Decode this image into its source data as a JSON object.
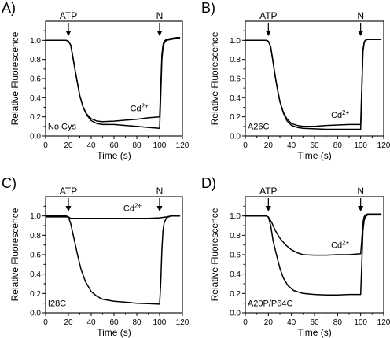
{
  "chart_data": [
    {
      "panel_label": "A)",
      "type": "line",
      "xlabel": "Time (s)",
      "ylabel": "Relative Fluorescence",
      "xlim": [
        0,
        120
      ],
      "ylim": [
        0,
        1.2
      ],
      "xticks": [
        "0",
        "20",
        "40",
        "60",
        "80",
        "100",
        "120"
      ],
      "yticks": [
        "0.0",
        "0.2",
        "0.4",
        "0.6",
        "0.8",
        "1.0"
      ],
      "annotations": [
        {
          "text": "ATP",
          "kind": "arrow",
          "x": 20
        },
        {
          "text": "N",
          "kind": "arrow",
          "x": 100
        },
        {
          "text": "Cd2+",
          "kind": "label",
          "x": 88,
          "y": 0.26
        },
        {
          "text": "No Cys",
          "kind": "label",
          "x": 2,
          "y": 0.07
        }
      ],
      "series": [
        {
          "x": [
            0,
            18,
            20,
            22,
            24,
            26,
            28,
            30,
            33,
            36,
            40,
            45,
            50,
            60,
            70,
            80,
            90,
            100,
            101,
            102,
            103,
            104,
            106,
            110,
            115,
            118
          ],
          "y": [
            1.0,
            1.0,
            0.99,
            0.95,
            0.82,
            0.68,
            0.55,
            0.42,
            0.3,
            0.22,
            0.16,
            0.13,
            0.12,
            0.12,
            0.11,
            0.1,
            0.09,
            0.08,
            0.4,
            0.8,
            0.92,
            0.97,
            1.0,
            1.01,
            1.02,
            1.02
          ]
        },
        {
          "x": [
            0,
            18,
            20,
            22,
            24,
            26,
            28,
            30,
            33,
            36,
            40,
            45,
            50,
            60,
            70,
            80,
            90,
            100,
            101,
            102,
            103,
            104,
            106,
            110,
            115,
            118
          ],
          "y": [
            1.0,
            1.0,
            0.99,
            0.95,
            0.82,
            0.68,
            0.55,
            0.42,
            0.3,
            0.23,
            0.18,
            0.155,
            0.15,
            0.155,
            0.165,
            0.175,
            0.19,
            0.2,
            0.5,
            0.85,
            0.95,
            0.99,
            1.01,
            1.02,
            1.03,
            1.03
          ]
        }
      ]
    },
    {
      "panel_label": "B)",
      "type": "line",
      "xlabel": "Time (s)",
      "ylabel": "Relative Fluorescence",
      "xlim": [
        0,
        120
      ],
      "ylim": [
        0,
        1.2
      ],
      "xticks": [
        "0",
        "20",
        "40",
        "60",
        "80",
        "100",
        "120"
      ],
      "yticks": [
        "0.0",
        "0.2",
        "0.4",
        "0.6",
        "0.8",
        "1.0"
      ],
      "annotations": [
        {
          "text": "ATP",
          "kind": "arrow",
          "x": 20
        },
        {
          "text": "N",
          "kind": "arrow",
          "x": 100
        },
        {
          "text": "Cd2+",
          "kind": "label",
          "x": 88,
          "y": 0.19
        },
        {
          "text": "A26C",
          "kind": "label",
          "x": 2,
          "y": 0.07
        }
      ],
      "series": [
        {
          "x": [
            0,
            18,
            20,
            22,
            24,
            26,
            28,
            30,
            33,
            36,
            40,
            45,
            50,
            60,
            70,
            80,
            90,
            100,
            101,
            102,
            103,
            104,
            106,
            110,
            115,
            118
          ],
          "y": [
            1.0,
            1.0,
            0.99,
            0.93,
            0.78,
            0.62,
            0.48,
            0.36,
            0.24,
            0.16,
            0.11,
            0.09,
            0.08,
            0.075,
            0.07,
            0.07,
            0.07,
            0.07,
            0.45,
            0.88,
            0.97,
            1.0,
            1.01,
            1.01,
            1.01,
            1.01
          ]
        },
        {
          "x": [
            0,
            18,
            20,
            22,
            24,
            26,
            28,
            30,
            33,
            36,
            40,
            45,
            50,
            60,
            70,
            80,
            90,
            100,
            101,
            102,
            103,
            104,
            106,
            110,
            115,
            118
          ],
          "y": [
            1.0,
            1.0,
            0.99,
            0.93,
            0.78,
            0.62,
            0.48,
            0.36,
            0.25,
            0.18,
            0.13,
            0.11,
            0.1,
            0.1,
            0.11,
            0.115,
            0.12,
            0.12,
            0.5,
            0.9,
            0.98,
            1.0,
            1.01,
            1.01,
            1.01,
            1.01
          ]
        }
      ]
    },
    {
      "panel_label": "C)",
      "type": "line",
      "xlabel": "Time (s)",
      "ylabel": "Relative Fluorescence",
      "xlim": [
        0,
        120
      ],
      "ylim": [
        0,
        1.2
      ],
      "xticks": [
        "0",
        "20",
        "40",
        "60",
        "80",
        "100",
        "120"
      ],
      "yticks": [
        "0.0",
        "0.2",
        "0.4",
        "0.6",
        "0.8",
        "1.0"
      ],
      "annotations": [
        {
          "text": "ATP",
          "kind": "arrow",
          "x": 20
        },
        {
          "text": "N",
          "kind": "arrow",
          "x": 100
        },
        {
          "text": "Cd2+",
          "kind": "label",
          "x": 82,
          "y": 1.05
        },
        {
          "text": "I28C",
          "kind": "label",
          "x": 2,
          "y": 0.07
        }
      ],
      "series": [
        {
          "x": [
            0,
            18,
            20,
            22,
            25,
            28,
            31,
            35,
            40,
            45,
            50,
            60,
            70,
            80,
            90,
            100,
            101,
            102,
            103,
            104,
            106,
            110,
            115,
            118
          ],
          "y": [
            1.0,
            1.0,
            0.99,
            0.92,
            0.76,
            0.6,
            0.45,
            0.32,
            0.22,
            0.17,
            0.14,
            0.12,
            0.11,
            0.1,
            0.095,
            0.09,
            0.3,
            0.65,
            0.85,
            0.93,
            0.98,
            1.0,
            1.0,
            1.0
          ]
        },
        {
          "x": [
            0,
            20,
            22,
            30,
            40,
            50,
            60,
            70,
            80,
            90,
            100,
            106,
            110,
            115,
            118
          ],
          "y": [
            0.99,
            0.99,
            0.975,
            0.975,
            0.975,
            0.975,
            0.975,
            0.975,
            0.975,
            0.975,
            0.98,
            0.99,
            1.0,
            1.0,
            1.0
          ]
        }
      ]
    },
    {
      "panel_label": "D)",
      "type": "line",
      "xlabel": "Time (s)",
      "ylabel": "Relative Fluorescence",
      "xlim": [
        0,
        120
      ],
      "ylim": [
        0,
        1.2
      ],
      "xticks": [
        "0",
        "20",
        "40",
        "60",
        "80",
        "100",
        "120"
      ],
      "yticks": [
        "0.0",
        "0.2",
        "0.4",
        "0.6",
        "0.8",
        "1.0"
      ],
      "annotations": [
        {
          "text": "ATP",
          "kind": "arrow",
          "x": 20
        },
        {
          "text": "N",
          "kind": "arrow",
          "x": 100
        },
        {
          "text": "Cd2+",
          "kind": "label",
          "x": 88,
          "y": 0.67
        },
        {
          "text": "A20P/P64C",
          "kind": "label",
          "x": 2,
          "y": 0.07
        }
      ],
      "series": [
        {
          "x": [
            0,
            18,
            20,
            22,
            24,
            27,
            30,
            33,
            37,
            42,
            50,
            60,
            70,
            80,
            90,
            100,
            101,
            102,
            103,
            104,
            106,
            110,
            115,
            118
          ],
          "y": [
            1.0,
            1.0,
            0.99,
            0.9,
            0.75,
            0.6,
            0.46,
            0.36,
            0.28,
            0.23,
            0.2,
            0.19,
            0.185,
            0.185,
            0.19,
            0.19,
            0.5,
            0.85,
            0.95,
            0.99,
            1.01,
            1.01,
            1.01,
            1.01
          ]
        },
        {
          "x": [
            0,
            18,
            20,
            23,
            26,
            30,
            35,
            40,
            45,
            50,
            60,
            70,
            80,
            90,
            100,
            101,
            102,
            103,
            104,
            106,
            110,
            115,
            118
          ],
          "y": [
            1.0,
            1.0,
            0.99,
            0.93,
            0.85,
            0.77,
            0.7,
            0.65,
            0.62,
            0.6,
            0.595,
            0.595,
            0.6,
            0.6,
            0.61,
            0.75,
            0.93,
            0.99,
            1.01,
            1.02,
            1.02,
            1.02,
            1.02
          ]
        }
      ]
    }
  ]
}
